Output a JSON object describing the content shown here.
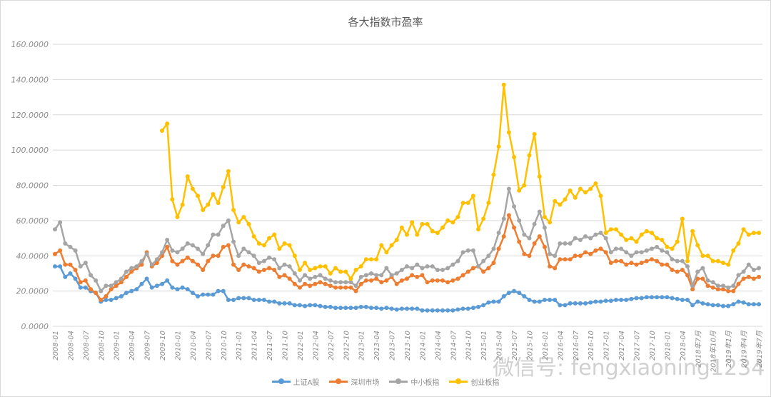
{
  "chart_data": {
    "type": "line",
    "title": "各大指数市盈率",
    "xlabel": "",
    "ylabel": "",
    "ylim": [
      0,
      160
    ],
    "yticks": [
      "0.0000",
      "20.0000",
      "40.0000",
      "60.0000",
      "80.0000",
      "100.0000",
      "120.0000",
      "140.0000",
      "160.0000"
    ],
    "x_start": "2008-01",
    "n_points": 139,
    "x_labels": [
      "2008-01",
      "2008-04",
      "2008-07",
      "2008-10",
      "2009-01",
      "2009-04",
      "2009-07",
      "2009-10",
      "2010-01",
      "2010-04",
      "2010-07",
      "2010-10",
      "2011-01",
      "2011-04",
      "2011-07",
      "2011-10",
      "2012-01",
      "2012-04",
      "2012-07",
      "2012-10",
      "2013-01",
      "2013-04",
      "2013-07",
      "2013-10",
      "2014-01",
      "2014-04",
      "2014-07",
      "2014-10",
      "2015-01",
      "2015-04",
      "2015-07",
      "2015-10",
      "2016-01",
      "2016-04",
      "2016-07",
      "2016-10",
      "2017-01",
      "2017-04",
      "2017-07",
      "2017-10",
      "2018-01",
      "2018-04",
      "2018年7月",
      "2018年10月",
      "2019年1月",
      "2019年4月",
      "2019年7月"
    ],
    "grid": true,
    "legend_position": "bottom",
    "series": [
      {
        "name": "上证A股",
        "color": "#5b9bd5",
        "values": [
          34,
          34,
          28,
          30,
          27,
          22,
          22,
          20,
          19,
          14,
          15,
          15,
          16,
          17,
          19,
          20,
          21,
          24,
          27,
          22,
          23,
          24,
          26,
          22,
          21,
          22,
          21,
          19,
          17,
          18,
          18,
          18,
          20,
          20,
          15,
          15,
          16,
          16,
          16,
          15,
          15,
          15,
          14,
          14,
          13,
          13,
          13,
          12,
          12,
          11.5,
          12,
          12,
          11.5,
          11,
          11,
          10.5,
          10.5,
          10.5,
          10.5,
          10.5,
          11,
          11,
          10.5,
          10.5,
          10,
          10.5,
          10,
          9.5,
          10,
          10,
          10,
          10,
          9,
          9,
          9,
          9,
          9,
          9,
          9,
          9.5,
          10,
          10,
          10.5,
          11,
          12,
          13.5,
          14,
          14,
          17,
          19,
          20,
          19,
          17,
          15,
          14,
          14,
          15,
          15,
          15,
          12,
          12,
          13,
          13,
          13,
          13,
          13.5,
          14,
          14,
          14.5,
          14.5,
          15,
          15,
          15,
          15.5,
          16,
          16,
          16.5,
          16.5,
          16.5,
          16.5,
          16.5,
          16,
          15.5,
          15,
          15,
          12,
          14,
          13,
          12.5,
          12,
          12,
          11.5,
          11.5,
          12.5,
          14,
          13.5,
          12.5,
          12.5,
          12.5
        ]
      },
      {
        "name": "深圳市场",
        "color": "#ed7d31",
        "values": [
          41,
          43,
          35,
          35,
          32,
          25,
          26,
          21,
          19,
          15,
          17,
          21,
          23,
          25,
          28,
          31,
          33,
          35,
          42,
          34,
          36,
          40,
          45,
          37,
          35,
          37,
          39,
          37,
          35,
          32,
          37,
          40,
          40,
          45,
          46,
          35,
          32,
          35,
          34,
          33,
          31,
          32,
          33,
          32,
          28,
          29,
          27,
          24,
          22,
          24,
          23,
          24,
          25,
          24,
          23,
          22,
          22,
          22,
          22,
          20,
          24,
          26,
          26,
          27,
          25,
          26,
          28,
          24,
          26,
          27,
          29,
          28,
          29,
          25,
          26,
          26,
          26,
          25,
          26,
          27,
          29,
          31,
          33,
          34,
          31,
          33,
          36,
          44,
          51,
          63,
          56,
          48,
          41,
          40,
          47,
          51,
          45,
          34,
          33,
          38,
          38,
          38,
          40,
          40,
          42,
          41,
          43,
          44,
          42,
          36,
          37,
          37,
          35,
          36,
          35,
          36,
          37,
          38,
          37,
          35,
          35,
          32,
          31,
          32,
          29,
          21,
          27,
          27,
          23,
          22,
          21,
          21,
          20,
          20,
          24,
          27,
          28,
          27,
          28
        ]
      },
      {
        "name": "中小板指",
        "color": "#a5a5a5",
        "values": [
          55,
          59,
          47,
          45,
          43,
          34,
          36,
          29,
          26,
          20,
          23,
          23,
          25,
          27,
          31,
          33,
          34,
          37,
          41,
          35,
          38,
          42,
          49,
          43,
          42,
          44,
          47,
          46,
          44,
          41,
          46,
          52,
          52,
          57,
          60,
          48,
          40,
          44,
          42,
          40,
          36,
          37,
          39,
          38,
          33,
          35,
          34,
          30,
          26,
          29,
          27,
          28,
          29,
          27,
          26,
          25,
          25,
          25,
          25,
          23,
          28,
          29,
          30,
          29,
          29,
          33,
          29,
          30,
          32,
          34,
          33,
          35,
          33,
          34,
          34,
          32,
          32,
          33,
          35,
          37,
          42,
          43,
          43,
          34,
          37,
          40,
          44,
          53,
          61,
          78,
          68,
          60,
          52,
          50,
          58,
          65,
          56,
          41,
          40,
          47,
          47,
          47,
          50,
          49,
          51,
          50,
          52,
          53,
          50,
          42,
          44,
          44,
          42,
          40,
          42,
          42,
          43,
          44,
          45,
          43,
          42,
          38,
          37,
          37,
          34,
          23,
          31,
          33,
          26,
          25,
          23,
          23,
          22,
          23,
          29,
          31,
          35,
          32,
          33
        ]
      },
      {
        "name": "创业板指",
        "color": "#ffc000",
        "values": [
          null,
          null,
          null,
          null,
          null,
          null,
          null,
          null,
          null,
          null,
          null,
          null,
          null,
          null,
          null,
          null,
          null,
          null,
          null,
          null,
          null,
          111,
          115,
          72,
          62,
          69,
          85,
          78,
          74,
          66,
          69,
          75,
          70,
          79,
          88,
          66,
          59,
          62,
          58,
          51,
          47,
          46,
          50,
          52,
          44,
          47,
          46,
          40,
          32,
          36,
          32,
          33,
          34,
          34,
          30,
          33,
          31,
          31,
          27,
          32,
          34,
          38,
          38,
          38,
          46,
          42,
          46,
          49,
          56,
          52,
          59,
          52,
          58,
          58,
          54,
          53,
          56,
          60,
          59,
          62,
          70,
          70,
          74,
          55,
          61,
          70,
          86,
          102,
          137,
          110,
          96,
          77,
          80,
          97,
          109,
          85,
          62,
          59,
          71,
          69,
          72,
          77,
          73,
          78,
          76,
          78,
          81,
          74,
          53,
          55,
          55,
          52,
          49,
          50,
          48,
          52,
          54,
          53,
          50,
          49,
          45,
          44,
          48,
          61,
          37,
          54,
          46,
          40,
          40,
          37,
          37,
          36,
          35,
          43,
          47,
          55,
          52,
          53,
          53
        ]
      }
    ]
  },
  "watermark": "微信号: fengxiaoning1234"
}
